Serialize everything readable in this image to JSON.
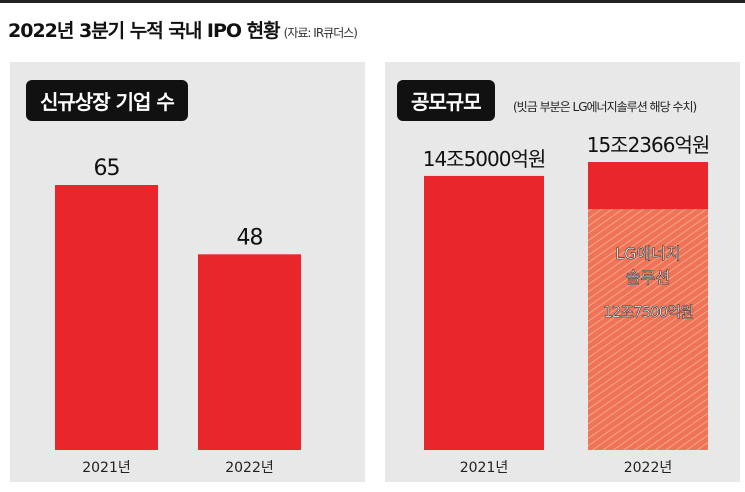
{
  "title": "2022년 3분기 누적 국내 IPO 현황",
  "source": "(자료: IR큐더스)",
  "colors": {
    "bar": "#e8262c",
    "hatch": "#f07a5a",
    "panel": "#e8e8e8"
  },
  "chart_data": [
    {
      "type": "bar",
      "title": "신규상장 기업 수",
      "categories": [
        "2021년",
        "2022년"
      ],
      "values": [
        65,
        48
      ],
      "labels": [
        "65",
        "48"
      ],
      "ylim": [
        0,
        65
      ]
    },
    {
      "type": "bar",
      "title": "공모규모",
      "subtitle": "(빗금 부분은 LG에너지솔루션 해당 수치)",
      "categories": [
        "2021년",
        "2022년"
      ],
      "values": [
        145000,
        152366
      ],
      "labels": [
        "14조5000억원",
        "15조2366억원"
      ],
      "unit": "억원",
      "highlight": {
        "category": "2022년",
        "name_lines": [
          "LG에너지",
          "솔루션"
        ],
        "value": 127500,
        "label": "12조7500억원",
        "pattern": "hatched"
      },
      "ylim": [
        0,
        152366
      ]
    }
  ]
}
